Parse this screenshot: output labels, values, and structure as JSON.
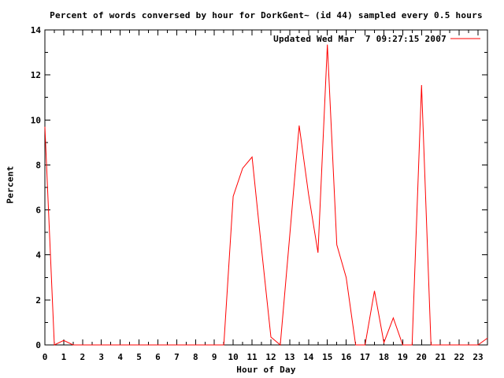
{
  "title": "Percent of words conversed by hour for DorkGent~ (id 44) sampled every 0.5 hours",
  "legend": {
    "label": "Updated Wed Mar  7 09:27:15 2007"
  },
  "colors": {
    "line": "#ff0000",
    "text": "#000000",
    "border": "#000000",
    "background": "#ffffff"
  },
  "chart_data": {
    "type": "line",
    "title": "Percent of words conversed by hour for DorkGent~ (id 44) sampled every 0.5 hours",
    "xlabel": "Hour of Day",
    "ylabel": "Percent",
    "xlim": [
      0,
      23.5
    ],
    "ylim": [
      0,
      14
    ],
    "xticks_labeled": [
      0,
      1,
      2,
      3,
      4,
      5,
      6,
      7,
      8,
      9,
      10,
      11,
      12,
      13,
      14,
      15,
      16,
      17,
      18,
      19,
      20,
      21,
      22,
      23
    ],
    "xtick_minor_interval": 0.5,
    "yticks_labeled": [
      0,
      2,
      4,
      6,
      8,
      10,
      12,
      14
    ],
    "ytick_minor_interval": 1,
    "grid": false,
    "legend_position": "top-right-inside",
    "series": [
      {
        "name": "Updated Wed Mar  7 09:27:15 2007",
        "color": "#ff0000",
        "x": [
          0,
          0.5,
          1,
          1.5,
          2,
          2.5,
          3,
          3.5,
          4,
          4.5,
          5,
          5.5,
          6,
          6.5,
          7,
          7.5,
          8,
          8.5,
          9,
          9.5,
          10,
          10.5,
          11,
          11.5,
          12,
          12.5,
          13,
          13.5,
          14,
          14.5,
          15,
          15.5,
          16,
          16.5,
          17,
          17.5,
          18,
          18.5,
          19,
          19.5,
          20,
          20.5,
          21,
          21.5,
          22,
          22.5,
          23,
          23.5
        ],
        "y": [
          9.7,
          0,
          0.2,
          0,
          0,
          0,
          0,
          0,
          0,
          0,
          0,
          0,
          0,
          0,
          0,
          0,
          0,
          0,
          0,
          0,
          6.6,
          7.85,
          8.35,
          4.3,
          0.35,
          0,
          4.85,
          9.75,
          6.7,
          4.1,
          13.35,
          4.45,
          3.0,
          0,
          0,
          2.4,
          0.1,
          1.2,
          0,
          0,
          11.55,
          0,
          0,
          0,
          0,
          0,
          0,
          0.3
        ]
      }
    ]
  }
}
